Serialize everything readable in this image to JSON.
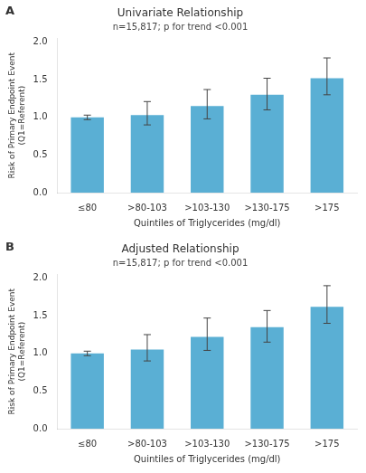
{
  "chart_data": [
    {
      "type": "bar",
      "panel_label": "A",
      "title": "Univariate Relationship",
      "annotation": "n=15,817; p for trend <0.001",
      "categories": [
        "≤80",
        ">80-103",
        ">103-130",
        ">130-175",
        ">175"
      ],
      "values": [
        1.0,
        1.03,
        1.15,
        1.3,
        1.52
      ],
      "errors_low": [
        0.03,
        0.13,
        0.17,
        0.2,
        0.22
      ],
      "errors_high": [
        0.03,
        0.18,
        0.22,
        0.22,
        0.27
      ],
      "color": "#5aafd4",
      "xlabel": "Quintiles of Triglycerides (mg/dl)",
      "ylabel": [
        "Risk of Primary Endpoint Event",
        "(Q1=Referent)"
      ],
      "ylim": [
        0.0,
        2.05
      ],
      "yticks": [
        {
          "value": 0,
          "label": "0.0"
        },
        0.5,
        {
          "value": 1,
          "label": "1.0"
        },
        1.5,
        {
          "value": 2,
          "label": "2.0"
        }
      ],
      "grid": false
    },
    {
      "type": "bar",
      "panel_label": "B",
      "title": "Adjusted Relationship",
      "annotation": "n=15,817; p for trend <0.001",
      "categories": [
        "≤80",
        ">80-103",
        ">103-130",
        ">130-175",
        ">175"
      ],
      "values": [
        1.0,
        1.05,
        1.22,
        1.35,
        1.62
      ],
      "errors_low": [
        0.03,
        0.15,
        0.18,
        0.2,
        0.22
      ],
      "errors_high": [
        0.03,
        0.2,
        0.25,
        0.22,
        0.28
      ],
      "color": "#5aafd4",
      "xlabel": "Quintiles of Triglycerides (mg/dl)",
      "ylabel": [
        "Risk of Primary Endpoint Event",
        "(Q1=Referent)"
      ],
      "ylim": [
        0.0,
        2.05
      ],
      "yticks": [
        {
          "value": 0,
          "label": "0.0"
        },
        0.5,
        {
          "value": 1,
          "label": "1.0"
        },
        1.5,
        {
          "value": 2,
          "label": "2.0"
        }
      ],
      "grid": false
    }
  ]
}
